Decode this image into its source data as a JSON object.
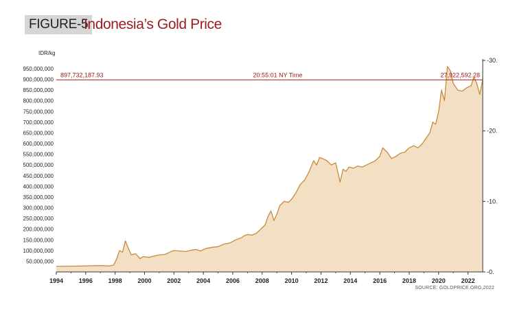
{
  "figure_label": "FIGURE-5",
  "title": "Indonesia’s Gold Price",
  "y_unit": "IDR/kg",
  "source": "SOURCE: GOLDPRICE.ORG,2022",
  "colors": {
    "fill": "#f3dfc4",
    "line": "#c98a3a",
    "ref": "#9b1d20",
    "title": "#9b1d20"
  },
  "chart_data": {
    "type": "area",
    "title": "Indonesia’s Gold Price",
    "ylabel": "IDR/kg",
    "xlim": [
      1994,
      2023
    ],
    "ylim": [
      0,
      950000000
    ],
    "y_ticks": [
      {
        "value": 50000000,
        "label": "50,000,000"
      },
      {
        "value": 100000000,
        "label": "100,000,000"
      },
      {
        "value": 150000000,
        "label": "150,000,000"
      },
      {
        "value": 200000000,
        "label": "200,000,000"
      },
      {
        "value": 250000000,
        "label": "250,000,000"
      },
      {
        "value": 300000000,
        "label": "300,000,000"
      },
      {
        "value": 350000000,
        "label": "350,000,000"
      },
      {
        "value": 400000000,
        "label": "400,000,000"
      },
      {
        "value": 450000000,
        "label": "450,000,000"
      },
      {
        "value": 500000000,
        "label": "500,000,000"
      },
      {
        "value": 550000000,
        "label": "550,000,000"
      },
      {
        "value": 600000000,
        "label": "600,000,000"
      },
      {
        "value": 650000000,
        "label": "650,000,000"
      },
      {
        "value": 700000000,
        "label": "700,000,000"
      },
      {
        "value": 750000000,
        "label": "750,000,000"
      },
      {
        "value": 800000000,
        "label": "800,000,000"
      },
      {
        "value": 850000000,
        "label": "850,000,000"
      },
      {
        "value": 900000000,
        "label": "900,000,000"
      },
      {
        "value": 950000000,
        "label": "950,000,000"
      }
    ],
    "x_ticks": [
      {
        "value": 1994,
        "label": "1994"
      },
      {
        "value": 1996,
        "label": "1996"
      },
      {
        "value": 1998,
        "label": "1998"
      },
      {
        "value": 2000,
        "label": "2000"
      },
      {
        "value": 2002,
        "label": "2002"
      },
      {
        "value": 2004,
        "label": "2004"
      },
      {
        "value": 2006,
        "label": "2006"
      },
      {
        "value": 2008,
        "label": "2008"
      },
      {
        "value": 2010,
        "label": "2010"
      },
      {
        "value": 2012,
        "label": "2012"
      },
      {
        "value": 2014,
        "label": "2014"
      },
      {
        "value": 2016,
        "label": "2016"
      },
      {
        "value": 2018,
        "label": "2018"
      },
      {
        "value": 2020,
        "label": "2020"
      },
      {
        "value": 2022,
        "label": "2022"
      }
    ],
    "secondary_axis": {
      "ylim": [
        0,
        30
      ],
      "ticks": [
        {
          "value": 0,
          "label": "-0."
        },
        {
          "value": 10,
          "label": "-10."
        },
        {
          "value": 20,
          "label": "-20."
        },
        {
          "value": 30,
          "label": "-30."
        }
      ]
    },
    "reference_line": {
      "value": 897732187.93,
      "left_label": "897,732,187.93",
      "center_label": "20:55:01 NY Time",
      "right_label": "27,922,592.28"
    },
    "series": [
      {
        "name": "Gold price",
        "x": [
          1994,
          1995,
          1996,
          1997,
          1997.6,
          1997.9,
          1998.1,
          1998.3,
          1998.5,
          1998.7,
          1998.9,
          1999.1,
          1999.4,
          1999.7,
          1999.9,
          2000.3,
          2000.7,
          2001,
          2001.4,
          2001.8,
          2002,
          2002.4,
          2002.8,
          2003.2,
          2003.5,
          2003.8,
          2004.2,
          2004.6,
          2005,
          2005.4,
          2005.8,
          2006.2,
          2006.4,
          2006.6,
          2006.8,
          2007,
          2007.3,
          2007.6,
          2007.9,
          2008.2,
          2008.4,
          2008.6,
          2008.8,
          2009,
          2009.2,
          2009.5,
          2009.8,
          2010,
          2010.3,
          2010.6,
          2010.9,
          2011.2,
          2011.5,
          2011.7,
          2011.9,
          2012.1,
          2012.4,
          2012.7,
          2013,
          2013.3,
          2013.5,
          2013.7,
          2013.9,
          2014.2,
          2014.5,
          2014.8,
          2015.1,
          2015.4,
          2015.7,
          2016,
          2016.2,
          2016.5,
          2016.8,
          2017.1,
          2017.4,
          2017.7,
          2018,
          2018.3,
          2018.6,
          2018.9,
          2019.1,
          2019.4,
          2019.6,
          2019.8,
          2020,
          2020.2,
          2020.4,
          2020.6,
          2020.8,
          2021,
          2021.3,
          2021.6,
          2021.9,
          2022.2,
          2022.4,
          2022.6,
          2022.8,
          2023
        ],
        "values": [
          26000000,
          27000000,
          28000000,
          30000000,
          28000000,
          32000000,
          60000000,
          100000000,
          92000000,
          145000000,
          110000000,
          80000000,
          85000000,
          62000000,
          72000000,
          68000000,
          75000000,
          80000000,
          82000000,
          95000000,
          100000000,
          98000000,
          95000000,
          102000000,
          105000000,
          98000000,
          110000000,
          115000000,
          118000000,
          130000000,
          135000000,
          150000000,
          155000000,
          160000000,
          170000000,
          175000000,
          172000000,
          180000000,
          200000000,
          220000000,
          260000000,
          285000000,
          240000000,
          270000000,
          310000000,
          330000000,
          325000000,
          340000000,
          370000000,
          410000000,
          430000000,
          470000000,
          520000000,
          500000000,
          535000000,
          530000000,
          520000000,
          500000000,
          510000000,
          420000000,
          480000000,
          470000000,
          490000000,
          485000000,
          495000000,
          490000000,
          500000000,
          510000000,
          520000000,
          540000000,
          580000000,
          560000000,
          530000000,
          540000000,
          555000000,
          560000000,
          580000000,
          590000000,
          580000000,
          600000000,
          620000000,
          650000000,
          700000000,
          690000000,
          750000000,
          850000000,
          800000000,
          960000000,
          940000000,
          880000000,
          850000000,
          845000000,
          860000000,
          870000000,
          910000000,
          880000000,
          830000000,
          900000000
        ]
      }
    ]
  }
}
